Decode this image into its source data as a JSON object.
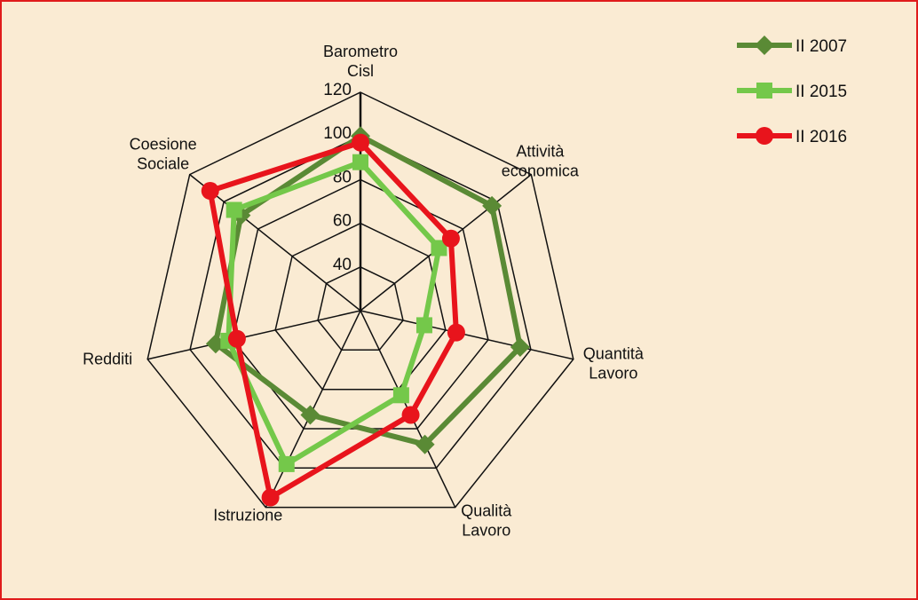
{
  "chart_data": {
    "type": "radar",
    "axes": [
      "Barometro\nCisl",
      "Attività\neconomica",
      "Quantità\nLavoro",
      "Qualità\nLavoro",
      "Istruzione",
      "Redditi",
      "Coesione\nSociale"
    ],
    "rlim": [
      20,
      120
    ],
    "ticks": [
      40,
      60,
      80,
      100,
      120
    ],
    "legend_position": "top-right",
    "series": [
      {
        "name": "II 2007",
        "color": "#5a8a35",
        "marker": "diamond",
        "values": [
          100,
          97,
          95,
          88,
          73,
          88,
          90
        ]
      },
      {
        "name": "II 2015",
        "color": "#74c84a",
        "marker": "square",
        "values": [
          88,
          66,
          50,
          63,
          98,
          82,
          94
        ]
      },
      {
        "name": "II 2016",
        "color": "#e8141c",
        "marker": "circle",
        "values": [
          97,
          73,
          65,
          73,
          115,
          78,
          108
        ]
      }
    ]
  }
}
